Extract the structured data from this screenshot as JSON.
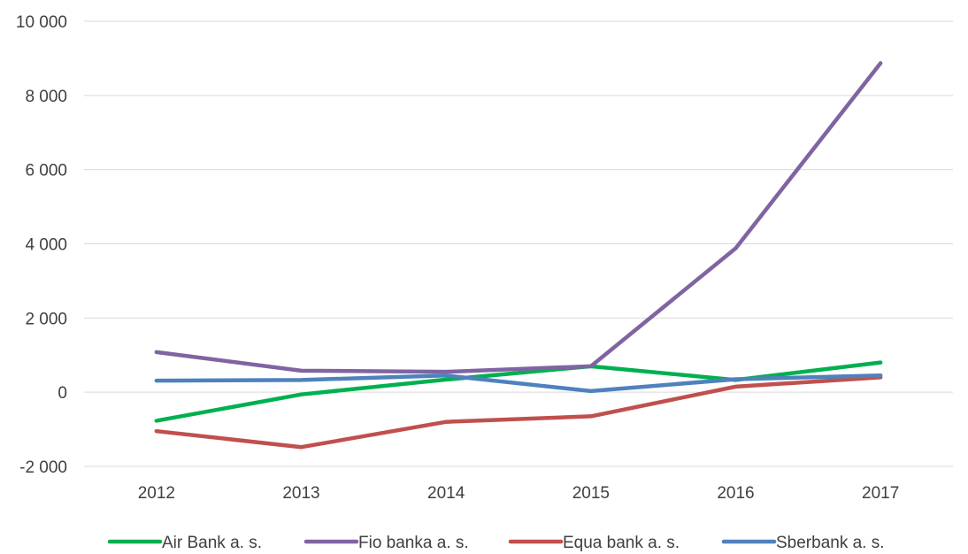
{
  "chart_data": {
    "type": "line",
    "title": "",
    "xlabel": "",
    "ylabel": "",
    "categories": [
      "2012",
      "2013",
      "2014",
      "2015",
      "2016",
      "2017"
    ],
    "ylim": [
      -2000,
      10000
    ],
    "yticks": [
      -2000,
      0,
      2000,
      4000,
      6000,
      8000,
      10000
    ],
    "ytick_labels": [
      "-2 000",
      "0",
      "2 000",
      "4 000",
      "6 000",
      "8 000",
      "10 000"
    ],
    "grid": true,
    "legend_position": "bottom",
    "series": [
      {
        "name": "Air Bank a. s.",
        "color": "#00b050",
        "values": [
          -770,
          -60,
          340,
          700,
          330,
          800
        ]
      },
      {
        "name": "Fio banka a. s.",
        "color": "#8064a2",
        "values": [
          1080,
          580,
          550,
          700,
          3880,
          8870
        ]
      },
      {
        "name": "Equa bank a. s.",
        "color": "#c0504d",
        "values": [
          -1050,
          -1480,
          -800,
          -650,
          150,
          400
        ]
      },
      {
        "name": "Sberbank a. s.",
        "color": "#4f81bd",
        "values": [
          310,
          330,
          450,
          30,
          350,
          450
        ]
      }
    ]
  }
}
